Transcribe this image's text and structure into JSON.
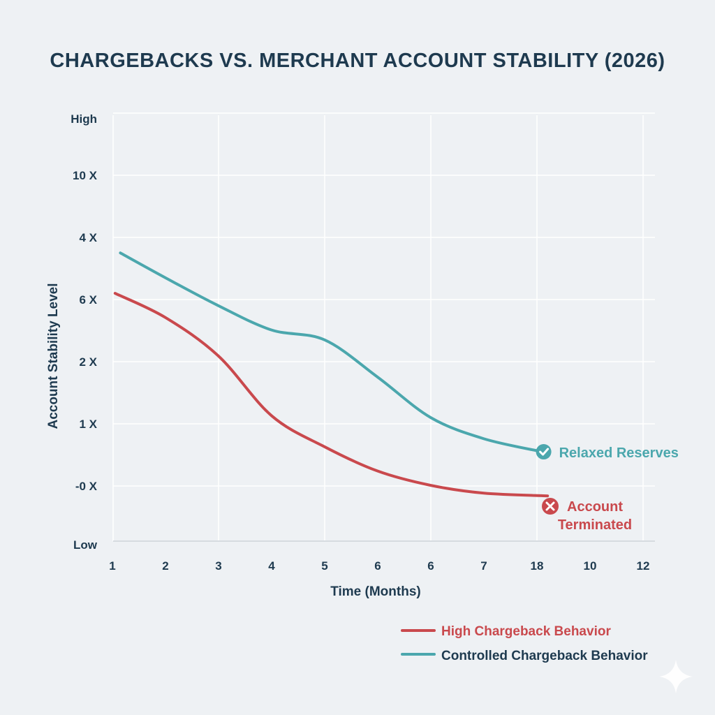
{
  "chart_data": {
    "type": "line",
    "title": "CHARGEBACKS VS. MERCHANT ACCOUNT STABILITY (2026)",
    "xlabel": "Time (Months)",
    "ylabel": "Account Stability Level",
    "x_tick_labels": [
      "1",
      "2",
      "3",
      "4",
      "5",
      "6",
      "6",
      "7",
      "18",
      "10",
      "12"
    ],
    "y_tick_labels": [
      "Low",
      "-0 X",
      "1 X",
      "2 X",
      "6 X",
      "4 X",
      "10 X",
      "High"
    ],
    "x_axis_note": "values below are positions along the printed tick sequence (0 = first tick '1')",
    "ylim": [
      0,
      7
    ],
    "grid": true,
    "legend_position": "bottom-right",
    "series": [
      {
        "name": "High Chargeback Behavior",
        "color": "#c9494d",
        "x": [
          0.05,
          1,
          2,
          3,
          4,
          5,
          6,
          7,
          8.2
        ],
        "y": [
          4.1,
          3.71,
          3.09,
          2.13,
          1.63,
          1.24,
          1.01,
          0.87,
          0.82
        ],
        "end_annotation": "Account Terminated",
        "end_icon": "x-circle-icon"
      },
      {
        "name": "Controlled Chargeback Behavior",
        "color": "#4ba7ad",
        "x": [
          0.15,
          1,
          2,
          3,
          4,
          5,
          6,
          7,
          8.1
        ],
        "y": [
          4.75,
          4.35,
          3.9,
          3.51,
          3.35,
          2.75,
          2.1,
          1.76,
          1.55
        ],
        "end_annotation": "Relaxed Reserves",
        "end_icon": "check-circle-icon"
      }
    ]
  }
}
